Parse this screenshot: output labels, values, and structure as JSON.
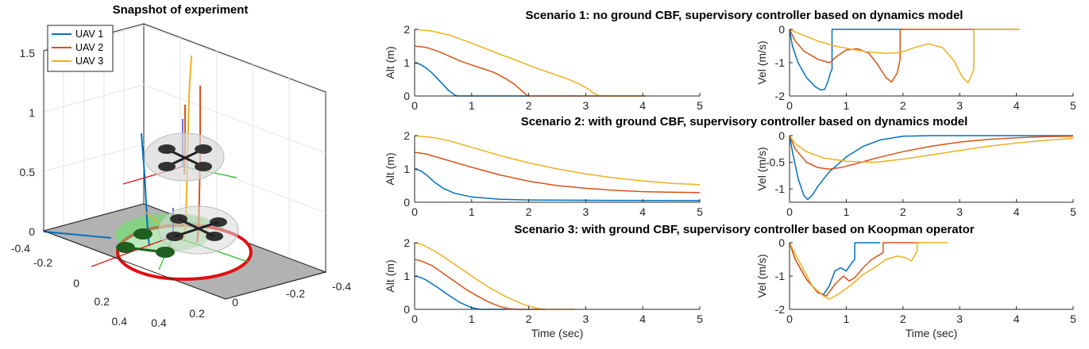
{
  "left_panel": {
    "title": "Snapshot of experiment",
    "z_ticks": [
      "0",
      "0.5",
      "1",
      "1.5"
    ],
    "y_ticks": [
      "-0.4",
      "-0.2",
      "0",
      "0.2",
      "0.4"
    ],
    "x_ticks": [
      "0.4",
      "0.2",
      "0",
      "-0.2",
      "-0.4"
    ],
    "legend": [
      {
        "label": "UAV 1",
        "color": "#0072BD"
      },
      {
        "label": "UAV 2",
        "color": "#D95319"
      },
      {
        "label": "UAV 3",
        "color": "#EDB120"
      }
    ]
  },
  "colors": {
    "uav1": "#0072BD",
    "uav2": "#D95319",
    "uav3": "#EDB120",
    "ring": "#E01010",
    "floor": "#B2B2B2",
    "safe_zone": "#66CC66"
  },
  "chart_data": [
    {
      "id": "s1_alt",
      "type": "line",
      "title": "Scenario 1: no ground CBF, supervisory controller based on dynamics model",
      "xlabel": "",
      "ylabel": "Alt (m)",
      "xlim": [
        0,
        5
      ],
      "ylim": [
        0,
        2
      ],
      "xticks": [
        0,
        1,
        2,
        3,
        4,
        5
      ],
      "yticks": [
        0,
        1,
        2
      ],
      "series": [
        {
          "name": "UAV 1",
          "color": "#0072BD",
          "x": [
            0,
            0.1,
            0.2,
            0.3,
            0.4,
            0.5,
            0.6,
            0.7,
            0.75,
            2.0
          ],
          "y": [
            1.0,
            0.95,
            0.84,
            0.7,
            0.52,
            0.34,
            0.16,
            0.03,
            0,
            0
          ]
        },
        {
          "name": "UAV 2",
          "color": "#D95319",
          "x": [
            0,
            0.2,
            0.4,
            0.6,
            0.8,
            1.0,
            1.2,
            1.4,
            1.6,
            1.75,
            1.85,
            1.95,
            2.0,
            4.05
          ],
          "y": [
            1.5,
            1.46,
            1.35,
            1.2,
            1.05,
            0.93,
            0.82,
            0.7,
            0.52,
            0.35,
            0.2,
            0.05,
            0,
            0
          ]
        },
        {
          "name": "UAV 3",
          "color": "#EDB120",
          "x": [
            0,
            0.3,
            0.6,
            0.9,
            1.2,
            1.5,
            1.8,
            2.1,
            2.4,
            2.7,
            2.9,
            3.05,
            3.15,
            3.25,
            4.05
          ],
          "y": [
            2.0,
            1.95,
            1.83,
            1.65,
            1.45,
            1.25,
            1.06,
            0.86,
            0.68,
            0.5,
            0.35,
            0.2,
            0.07,
            0,
            0
          ]
        }
      ]
    },
    {
      "id": "s1_vel",
      "type": "line",
      "title": "",
      "xlabel": "",
      "ylabel": "Vel (m/s)",
      "xlim": [
        0,
        5
      ],
      "ylim": [
        -2,
        0
      ],
      "xticks": [
        0,
        1,
        2,
        3,
        4,
        5
      ],
      "yticks": [
        -2,
        -1,
        0
      ],
      "series": [
        {
          "name": "UAV 1",
          "color": "#0072BD",
          "x": [
            0,
            0.05,
            0.15,
            0.3,
            0.45,
            0.55,
            0.62,
            0.68,
            0.72,
            0.75,
            0.75,
            2.0
          ],
          "y": [
            0,
            -0.5,
            -1.0,
            -1.45,
            -1.72,
            -1.82,
            -1.8,
            -1.55,
            -1.3,
            -1.2,
            0,
            0
          ]
        },
        {
          "name": "UAV 2",
          "color": "#D95319",
          "x": [
            0,
            0.1,
            0.25,
            0.5,
            0.7,
            0.75,
            0.8,
            1.0,
            1.2,
            1.4,
            1.55,
            1.7,
            1.8,
            1.9,
            1.95,
            1.95,
            4.05
          ],
          "y": [
            0,
            -0.35,
            -0.65,
            -0.9,
            -1.0,
            -0.95,
            -0.85,
            -0.62,
            -0.58,
            -0.72,
            -1.05,
            -1.45,
            -1.58,
            -1.3,
            -0.9,
            0,
            0
          ]
        },
        {
          "name": "UAV 3",
          "color": "#EDB120",
          "x": [
            0,
            0.2,
            0.5,
            0.8,
            1.1,
            1.4,
            1.7,
            1.95,
            2.2,
            2.45,
            2.7,
            2.9,
            3.05,
            3.15,
            3.25,
            3.25,
            4.05
          ],
          "y": [
            0,
            -0.15,
            -0.35,
            -0.5,
            -0.6,
            -0.68,
            -0.72,
            -0.7,
            -0.55,
            -0.43,
            -0.55,
            -0.95,
            -1.45,
            -1.6,
            -1.2,
            0,
            0
          ]
        }
      ]
    },
    {
      "id": "s2_alt",
      "type": "line",
      "title": "Scenario 2: with ground CBF, supervisory controller based on dynamics model",
      "xlabel": "",
      "ylabel": "Alt (m)",
      "xlim": [
        0,
        5
      ],
      "ylim": [
        0,
        2
      ],
      "xticks": [
        0,
        1,
        2,
        3,
        4,
        5
      ],
      "yticks": [
        0,
        1,
        2
      ],
      "series": [
        {
          "name": "UAV 1",
          "color": "#0072BD",
          "x": [
            0,
            0.1,
            0.2,
            0.35,
            0.5,
            0.7,
            1.0,
            1.5,
            2.0,
            3.0,
            5.0
          ],
          "y": [
            1.0,
            0.95,
            0.83,
            0.6,
            0.42,
            0.27,
            0.16,
            0.09,
            0.07,
            0.06,
            0.05
          ]
        },
        {
          "name": "UAV 2",
          "color": "#D95319",
          "x": [
            0,
            0.2,
            0.5,
            1.0,
            1.5,
            2.0,
            2.5,
            3.0,
            3.5,
            4.0,
            4.5,
            5.0
          ],
          "y": [
            1.5,
            1.45,
            1.3,
            1.05,
            0.82,
            0.63,
            0.5,
            0.42,
            0.36,
            0.32,
            0.3,
            0.29
          ]
        },
        {
          "name": "UAV 3",
          "color": "#EDB120",
          "x": [
            0,
            0.3,
            0.6,
            1.0,
            1.5,
            2.0,
            2.5,
            3.0,
            3.5,
            4.0,
            4.5,
            5.0
          ],
          "y": [
            2.0,
            1.95,
            1.85,
            1.65,
            1.4,
            1.18,
            1.0,
            0.85,
            0.73,
            0.64,
            0.57,
            0.53
          ]
        }
      ]
    },
    {
      "id": "s2_vel",
      "type": "line",
      "title": "",
      "xlabel": "",
      "ylabel": "Vel (m/s)",
      "xlim": [
        0,
        5
      ],
      "ylim": [
        -1.25,
        0
      ],
      "xticks": [
        0,
        1,
        2,
        3,
        4,
        5
      ],
      "yticks": [
        -1,
        -0.5,
        0
      ],
      "series": [
        {
          "name": "UAV 1",
          "color": "#0072BD",
          "x": [
            0,
            0.05,
            0.15,
            0.25,
            0.32,
            0.4,
            0.5,
            0.7,
            1.0,
            1.3,
            1.6,
            2.0,
            2.5,
            5.0
          ],
          "y": [
            0,
            -0.3,
            -0.8,
            -1.12,
            -1.2,
            -1.12,
            -0.95,
            -0.68,
            -0.4,
            -0.2,
            -0.08,
            -0.01,
            0,
            0
          ]
        },
        {
          "name": "UAV 2",
          "color": "#D95319",
          "x": [
            0,
            0.1,
            0.3,
            0.5,
            0.7,
            0.9,
            1.2,
            1.5,
            2.0,
            2.5,
            3.0,
            3.5,
            4.0,
            4.5,
            5.0
          ],
          "y": [
            0,
            -0.25,
            -0.5,
            -0.6,
            -0.63,
            -0.6,
            -0.52,
            -0.43,
            -0.3,
            -0.2,
            -0.12,
            -0.07,
            -0.04,
            -0.02,
            -0.01
          ]
        },
        {
          "name": "UAV 3",
          "color": "#EDB120",
          "x": [
            0,
            0.1,
            0.3,
            0.6,
            1.0,
            1.5,
            2.0,
            2.5,
            3.0,
            3.5,
            4.0,
            4.5,
            5.0
          ],
          "y": [
            0,
            -0.15,
            -0.3,
            -0.42,
            -0.48,
            -0.5,
            -0.44,
            -0.36,
            -0.28,
            -0.2,
            -0.14,
            -0.09,
            -0.05
          ]
        }
      ]
    },
    {
      "id": "s3_alt",
      "type": "line",
      "title": "Scenario 3: with ground CBF, supervisory controller based on Koopman operator",
      "xlabel": "Time (sec)",
      "ylabel": "Alt (m)",
      "xlim": [
        0,
        5
      ],
      "ylim": [
        0,
        2
      ],
      "xticks": [
        0,
        1,
        2,
        3,
        4,
        5
      ],
      "yticks": [
        0,
        1,
        2
      ],
      "series": [
        {
          "name": "UAV 1",
          "color": "#0072BD",
          "x": [
            0,
            0.1,
            0.2,
            0.4,
            0.6,
            0.8,
            1.0,
            1.15,
            1.6
          ],
          "y": [
            1.0,
            0.96,
            0.88,
            0.66,
            0.42,
            0.2,
            0.05,
            0,
            0
          ]
        },
        {
          "name": "UAV 2",
          "color": "#D95319",
          "x": [
            0,
            0.1,
            0.3,
            0.5,
            0.7,
            0.9,
            1.1,
            1.3,
            1.5,
            1.65,
            1.8,
            2.3
          ],
          "y": [
            1.5,
            1.46,
            1.32,
            1.08,
            0.84,
            0.6,
            0.4,
            0.22,
            0.08,
            0.02,
            0,
            0
          ]
        },
        {
          "name": "UAV 3",
          "color": "#EDB120",
          "x": [
            0,
            0.15,
            0.4,
            0.7,
            1.0,
            1.3,
            1.6,
            1.9,
            2.1,
            2.25,
            2.8
          ],
          "y": [
            2.0,
            1.93,
            1.7,
            1.35,
            1.0,
            0.66,
            0.38,
            0.15,
            0.05,
            0,
            0
          ]
        }
      ]
    },
    {
      "id": "s3_vel",
      "type": "line",
      "title": "",
      "xlabel": "Time (sec)",
      "ylabel": "Vel (m/s)",
      "xlim": [
        0,
        5
      ],
      "ylim": [
        -2,
        0
      ],
      "xticks": [
        0,
        1,
        2,
        3,
        4,
        5
      ],
      "yticks": [
        -2,
        -1,
        0
      ],
      "series": [
        {
          "name": "UAV 1",
          "color": "#0072BD",
          "x": [
            0,
            0.1,
            0.3,
            0.5,
            0.6,
            0.7,
            0.8,
            0.9,
            1.0,
            1.1,
            1.15,
            1.15,
            1.6
          ],
          "y": [
            0,
            -0.5,
            -1.1,
            -1.5,
            -1.55,
            -1.3,
            -0.85,
            -0.75,
            -0.85,
            -0.6,
            -0.5,
            0,
            0
          ]
        },
        {
          "name": "UAV 2",
          "color": "#D95319",
          "x": [
            0,
            0.1,
            0.3,
            0.5,
            0.65,
            0.8,
            0.95,
            1.05,
            1.15,
            1.3,
            1.45,
            1.6,
            1.65,
            1.65,
            2.3
          ],
          "y": [
            0,
            -0.5,
            -1.1,
            -1.5,
            -1.6,
            -1.25,
            -1.0,
            -1.15,
            -1.05,
            -0.75,
            -0.5,
            -0.35,
            -0.3,
            0,
            0
          ]
        },
        {
          "name": "UAV 3",
          "color": "#EDB120",
          "x": [
            0,
            0.15,
            0.4,
            0.6,
            0.7,
            0.9,
            1.1,
            1.3,
            1.5,
            1.7,
            1.9,
            2.05,
            2.15,
            2.25,
            2.25,
            2.8
          ],
          "y": [
            0,
            -0.5,
            -1.3,
            -1.6,
            -1.7,
            -1.5,
            -1.25,
            -0.95,
            -0.75,
            -0.5,
            -0.4,
            -0.45,
            -0.55,
            -0.25,
            0,
            0
          ]
        }
      ]
    }
  ]
}
